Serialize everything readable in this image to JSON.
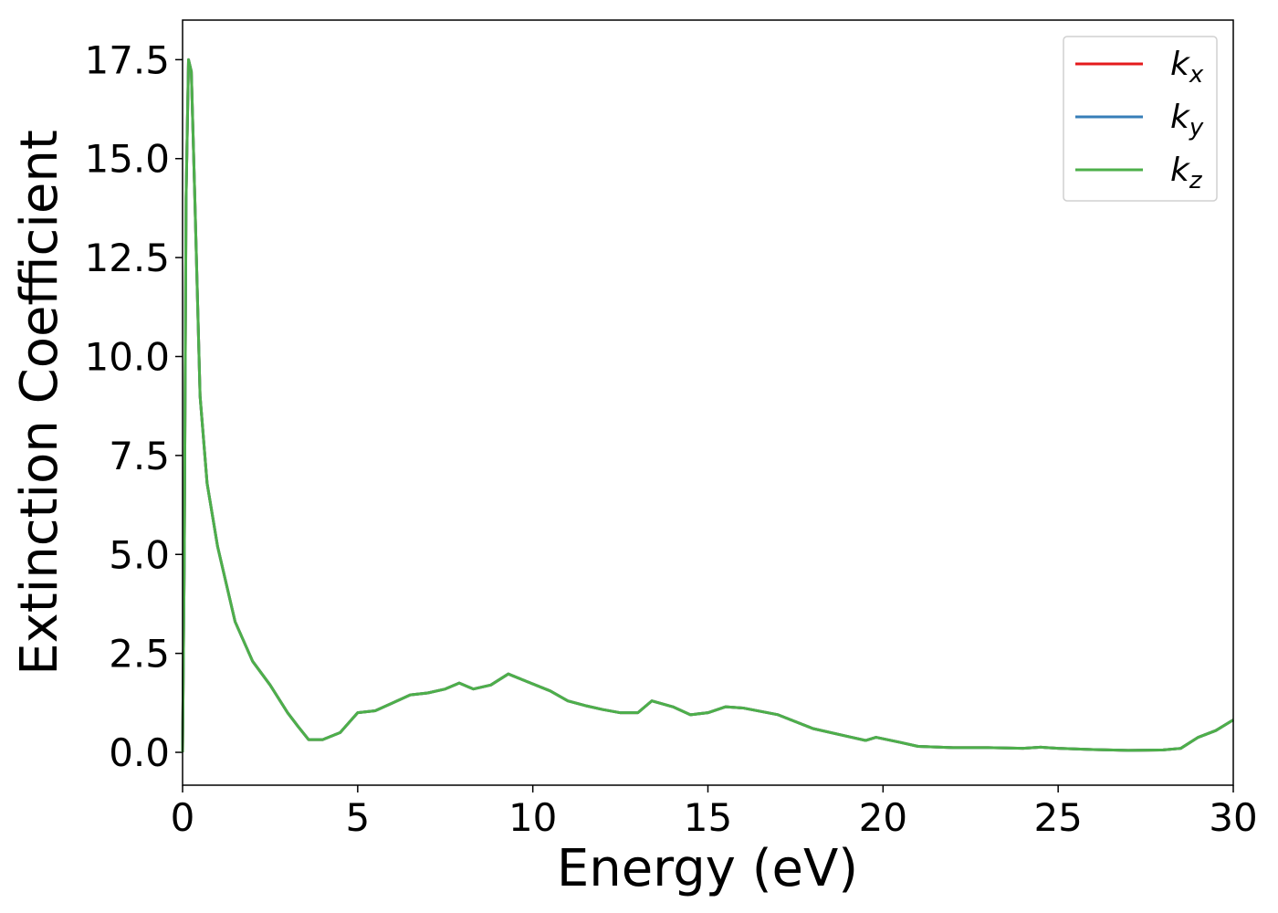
{
  "chart_data": {
    "type": "line",
    "xlabel": "Energy (eV)",
    "ylabel": "Extinction Coefficient",
    "x": [
      0,
      0.05,
      0.1,
      0.17,
      0.25,
      0.35,
      0.5,
      0.7,
      1.0,
      1.5,
      2,
      2.5,
      3,
      3.3,
      3.6,
      4,
      4.5,
      5,
      5.5,
      6,
      6.5,
      7,
      7.5,
      7.9,
      8.3,
      8.8,
      9.3,
      9.8,
      10.5,
      11,
      11.5,
      12,
      12.5,
      13,
      13.4,
      14,
      14.5,
      15,
      15.5,
      16,
      17,
      18,
      19,
      19.5,
      19.8,
      20.5,
      21,
      22,
      23,
      24,
      24.5,
      25,
      26,
      27,
      28,
      28.5,
      29,
      29.5,
      30
    ],
    "series": [
      {
        "name": "kx",
        "color": "#e41a1c",
        "values": [
          0,
          5,
          14,
          17.5,
          17.2,
          14,
          9,
          6.8,
          5.2,
          3.3,
          2.3,
          1.7,
          1.0,
          0.65,
          0.32,
          0.32,
          0.5,
          1.0,
          1.05,
          1.25,
          1.45,
          1.5,
          1.6,
          1.75,
          1.6,
          1.7,
          1.98,
          1.8,
          1.55,
          1.3,
          1.18,
          1.08,
          1.0,
          1.0,
          1.3,
          1.15,
          0.95,
          1.0,
          1.15,
          1.12,
          0.95,
          0.6,
          0.4,
          0.3,
          0.38,
          0.25,
          0.15,
          0.12,
          0.12,
          0.1,
          0.13,
          0.1,
          0.07,
          0.05,
          0.06,
          0.1,
          0.38,
          0.55,
          0.82
        ]
      },
      {
        "name": "ky",
        "color": "#377eb8",
        "values": [
          0,
          5,
          14,
          17.5,
          17.2,
          14,
          9,
          6.8,
          5.2,
          3.3,
          2.3,
          1.7,
          1.0,
          0.65,
          0.32,
          0.32,
          0.5,
          1.0,
          1.05,
          1.25,
          1.45,
          1.5,
          1.6,
          1.75,
          1.6,
          1.7,
          1.98,
          1.8,
          1.55,
          1.3,
          1.18,
          1.08,
          1.0,
          1.0,
          1.3,
          1.15,
          0.95,
          1.0,
          1.15,
          1.12,
          0.95,
          0.6,
          0.4,
          0.3,
          0.38,
          0.25,
          0.15,
          0.12,
          0.12,
          0.1,
          0.13,
          0.1,
          0.07,
          0.05,
          0.06,
          0.1,
          0.38,
          0.55,
          0.82
        ]
      },
      {
        "name": "kz",
        "color": "#4daf4a",
        "values": [
          0,
          5,
          14,
          17.5,
          17.2,
          14,
          9,
          6.8,
          5.2,
          3.3,
          2.3,
          1.7,
          1.0,
          0.65,
          0.32,
          0.32,
          0.5,
          1.0,
          1.05,
          1.25,
          1.45,
          1.5,
          1.6,
          1.75,
          1.6,
          1.7,
          1.98,
          1.8,
          1.55,
          1.3,
          1.18,
          1.08,
          1.0,
          1.0,
          1.3,
          1.15,
          0.95,
          1.0,
          1.15,
          1.12,
          0.95,
          0.6,
          0.4,
          0.3,
          0.38,
          0.25,
          0.15,
          0.12,
          0.12,
          0.1,
          0.13,
          0.1,
          0.07,
          0.05,
          0.06,
          0.1,
          0.38,
          0.55,
          0.82
        ]
      }
    ],
    "xlim": [
      0,
      30
    ],
    "xticks": [
      0,
      5,
      10,
      15,
      20,
      25,
      30
    ],
    "ylim": [
      -0.83,
      18.5
    ],
    "yticks": [
      {
        "value": 0,
        "label": "0.0"
      },
      2.5,
      {
        "value": 5,
        "label": "5.0"
      },
      7.5,
      {
        "value": 10,
        "label": "10.0"
      },
      12.5,
      {
        "value": 15,
        "label": "15.0"
      },
      17.5
    ],
    "legend": "upper right",
    "grid": false
  }
}
